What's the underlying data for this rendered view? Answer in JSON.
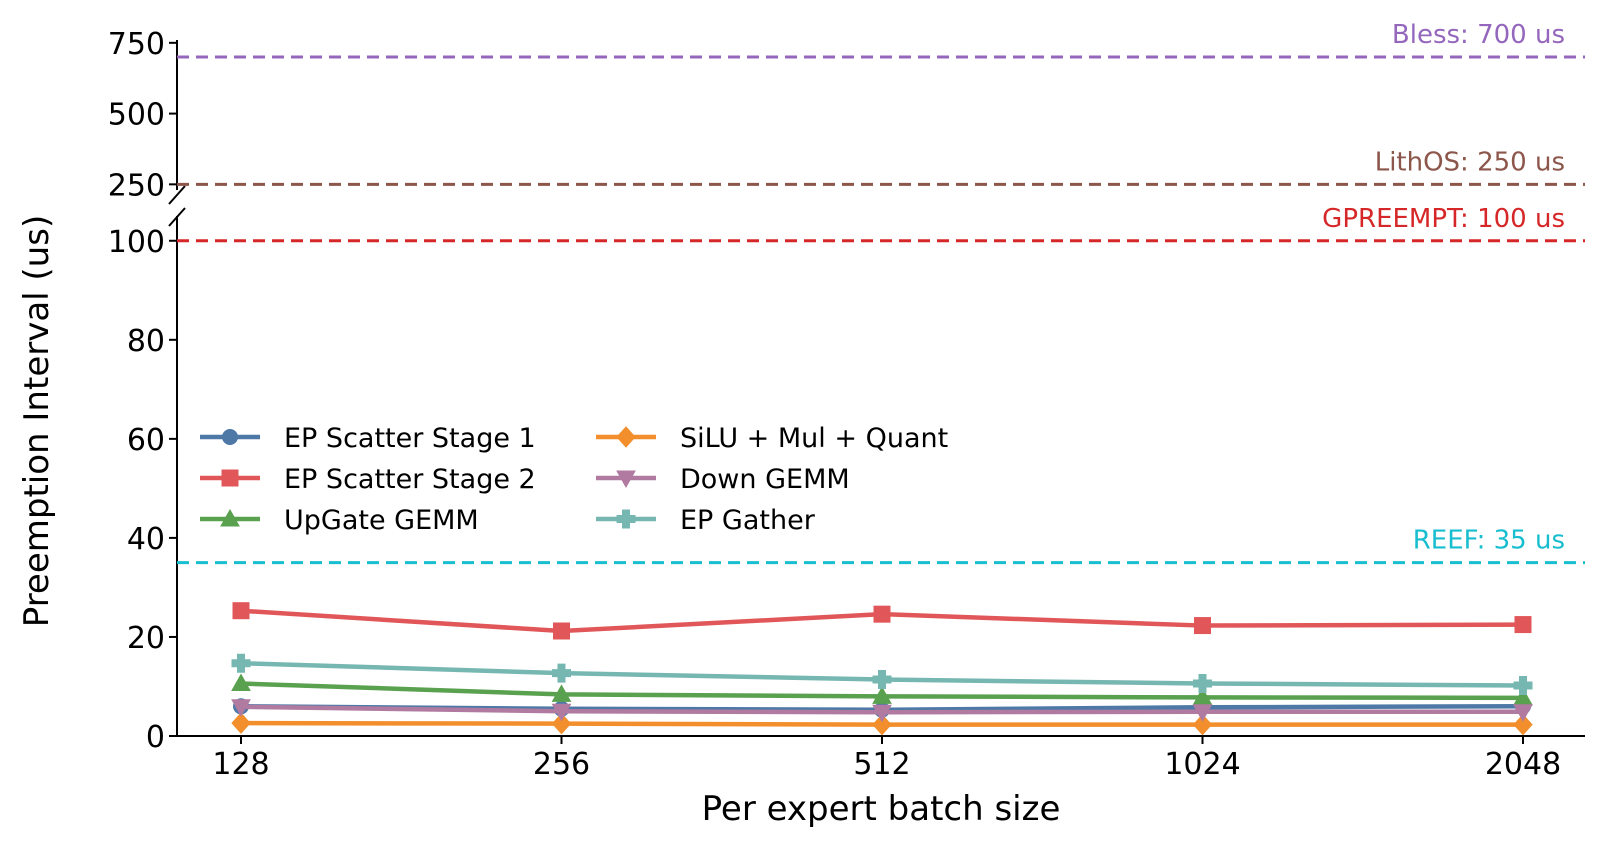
{
  "chart_data": {
    "type": "line",
    "title": "",
    "xlabel": "Per expert batch size",
    "ylabel": "Preemption Interval (us)",
    "categories": [
      "128",
      "256",
      "512",
      "1024",
      "2048"
    ],
    "y_axis": {
      "broken": true,
      "lower_range": [
        0,
        105
      ],
      "upper_range": [
        230,
        760
      ],
      "lower_ticks": [
        "0",
        "20",
        "40",
        "60",
        "80",
        "100"
      ],
      "upper_ticks": [
        "250",
        "500",
        "750"
      ]
    },
    "grid": false,
    "legend_placement": "center-left",
    "series": [
      {
        "name": "EP Scatter Stage 1",
        "color": "#4e79a7",
        "marker": "circle",
        "values": [
          6.0,
          5.5,
          5.3,
          5.8,
          6.0
        ]
      },
      {
        "name": "EP Scatter Stage 2",
        "color": "#e15759",
        "marker": "square",
        "values": [
          25.3,
          21.2,
          24.6,
          22.3,
          22.5
        ]
      },
      {
        "name": "UpGate GEMM",
        "color": "#59a14f",
        "marker": "triangle-up",
        "values": [
          10.6,
          8.4,
          8.0,
          7.8,
          7.7
        ]
      },
      {
        "name": "SiLU + Mul + Quant",
        "color": "#f28e2b",
        "marker": "diamond",
        "values": [
          2.6,
          2.5,
          2.3,
          2.3,
          2.3
        ]
      },
      {
        "name": "Down GEMM",
        "color": "#b07aa1",
        "marker": "triangle-down",
        "values": [
          5.9,
          5.0,
          4.8,
          4.9,
          4.9
        ]
      },
      {
        "name": "EP Gather",
        "color": "#76b7b2",
        "marker": "plus",
        "values": [
          14.7,
          12.7,
          11.4,
          10.6,
          10.2
        ]
      }
    ],
    "reference_lines": [
      {
        "label": "Bless: 700 us",
        "value": 700,
        "color": "#9467bd"
      },
      {
        "label": "LithOS: 250 us",
        "value": 250,
        "color": "#8c564b"
      },
      {
        "label": "GPREEMPT: 100 us",
        "value": 100,
        "color": "#d62728"
      },
      {
        "label": "REEF: 35 us",
        "value": 35,
        "color": "#17becf"
      }
    ]
  }
}
